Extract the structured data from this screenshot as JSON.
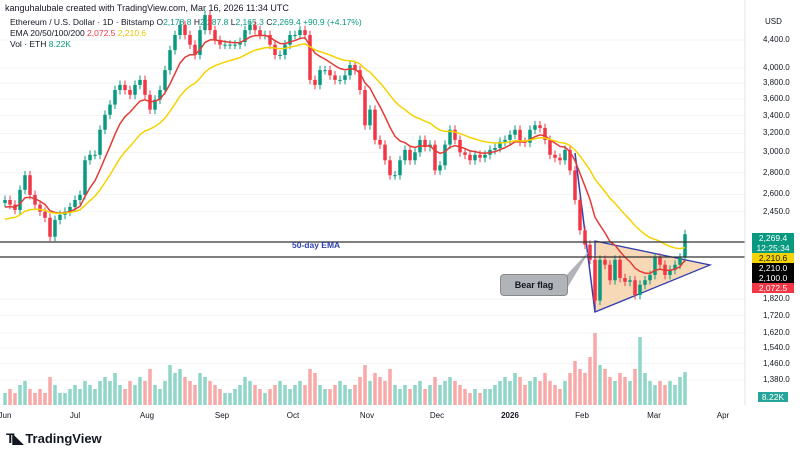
{
  "credit": "kanguhalubale created with TradingView.com, Mar 16, 2026 11:34 UTC",
  "legend": {
    "symbol": "Ethereum / U.S. Dollar · 1D · Bitstamp",
    "open_label": "O",
    "open": "2,178.8",
    "high_label": "H",
    "high": "2,287.8",
    "low_label": "L",
    "low": "2,165.3",
    "close_label": "C",
    "close": "2,269.4",
    "change": "+90.9 (+4.17%)",
    "ema_label": "EMA 20/50/100/200",
    "ema20": "2,072.5",
    "ema50": "2,210.6",
    "vol_label": "Vol · ETH",
    "vol": "8.22K"
  },
  "annotations": {
    "ema_note": "50-day EMA",
    "bear_flag": "Bear flag"
  },
  "price_axis": {
    "unit": "USD",
    "ticks": [
      "4,400.0",
      "4,000.0",
      "3,800.0",
      "3,600.0",
      "3,400.0",
      "3,200.0",
      "3,000.0",
      "2,800.0",
      "2,600.0",
      "2,450.0",
      "1,820.0",
      "1,720.0",
      "1,620.0",
      "1,540.0",
      "1,460.0",
      "1,380.0"
    ],
    "tick_values": [
      4400,
      4000,
      3800,
      3600,
      3400,
      3200,
      3000,
      2800,
      2600,
      2450,
      1820,
      1720,
      1620,
      1540,
      1460,
      1380
    ],
    "current_price": "2,269.4",
    "countdown": "12:25:34",
    "ema50_tag": "2,210.6",
    "line_a": "2,210.0",
    "line_b": "2,100.0",
    "ema20_tag": "2,072.5",
    "vol_tag": "8.22K"
  },
  "time_axis": [
    "Jun",
    "Jul",
    "Aug",
    "Sep",
    "Oct",
    "Nov",
    "Dec",
    "2026",
    "Feb",
    "Mar",
    "Apr"
  ],
  "brand": "TradingView",
  "colors": {
    "up": "#089981",
    "down": "#f23645",
    "ema20": "#e53935",
    "ema50": "#f5d300",
    "trend": "#2f3fb0",
    "flag_fill": "#f7d9b8"
  },
  "chart_data": {
    "type": "candlestick",
    "scale": "log",
    "ylim": [
      1300,
      5050
    ],
    "x_range": [
      "2025-06-01",
      "2026-04-05"
    ],
    "x_last": "2026-03-16",
    "closes": [
      2550,
      2510,
      2465,
      2640,
      2775,
      2595,
      2510,
      2450,
      2400,
      2250,
      2383,
      2425,
      2450,
      2490,
      2550,
      2595,
      2920,
      2975,
      2975,
      3240,
      3410,
      3530,
      3710,
      3775,
      3710,
      3650,
      3775,
      3840,
      3650,
      3470,
      3590,
      3710,
      3970,
      4250,
      4475,
      4630,
      4475,
      4330,
      4180,
      4550,
      4790,
      4550,
      4400,
      4330,
      4330,
      4330,
      4330,
      4370,
      4550,
      4630,
      4550,
      4475,
      4475,
      4330,
      4180,
      4180,
      4330,
      4475,
      4475,
      4550,
      4475,
      3840,
      3775,
      3970,
      3970,
      3900,
      3840,
      3840,
      3900,
      4040,
      3970,
      3710,
      3290,
      3470,
      3130,
      3080,
      2920,
      2775,
      2775,
      2920,
      3025,
      2920,
      3000,
      3130,
      3055,
      3080,
      2820,
      2870,
      3080,
      3240,
      3130,
      3000,
      2975,
      2920,
      2975,
      2945,
      2975,
      3025,
      3045,
      3110,
      3130,
      3185,
      3240,
      3110,
      3100,
      3240,
      3290,
      3260,
      3130,
      2975,
      2945,
      2920,
      3025,
      2820,
      2550,
      2300,
      2190,
      2080,
      1810,
      2080,
      2045,
      1940,
      2080,
      1955,
      1930,
      1940,
      1845,
      1910,
      1940,
      1975,
      2095,
      2045,
      1975,
      2010,
      2045,
      2095,
      2269.4
    ],
    "volume_k": [
      3,
      4,
      3,
      5,
      6,
      4,
      3,
      4,
      3,
      7,
      5,
      3,
      3,
      4,
      5,
      4,
      6,
      5,
      4,
      6,
      7,
      6,
      8,
      5,
      4,
      6,
      5,
      7,
      6,
      9,
      5,
      4,
      6,
      10,
      8,
      9,
      7,
      6,
      5,
      8,
      7,
      6,
      5,
      4,
      3,
      3,
      4,
      5,
      7,
      6,
      5,
      4,
      3,
      4,
      5,
      6,
      5,
      4,
      5,
      6,
      5,
      9,
      8,
      5,
      4,
      4,
      5,
      6,
      5,
      4,
      5,
      7,
      10,
      6,
      8,
      7,
      6,
      9,
      5,
      4,
      5,
      4,
      5,
      6,
      4,
      5,
      7,
      5,
      6,
      7,
      6,
      5,
      4,
      3,
      4,
      3,
      4,
      4,
      5,
      6,
      7,
      6,
      8,
      7,
      5,
      6,
      7,
      6,
      8,
      6,
      5,
      4,
      6,
      8,
      11,
      9,
      8,
      12,
      18,
      10,
      9,
      7,
      6,
      8,
      7,
      6,
      9,
      17,
      8,
      6,
      5,
      6,
      5,
      6,
      5,
      7,
      8.22
    ],
    "ema_series": [
      "EMA 20",
      "EMA 50"
    ],
    "levels": [
      2210.0,
      2100.0
    ]
  }
}
